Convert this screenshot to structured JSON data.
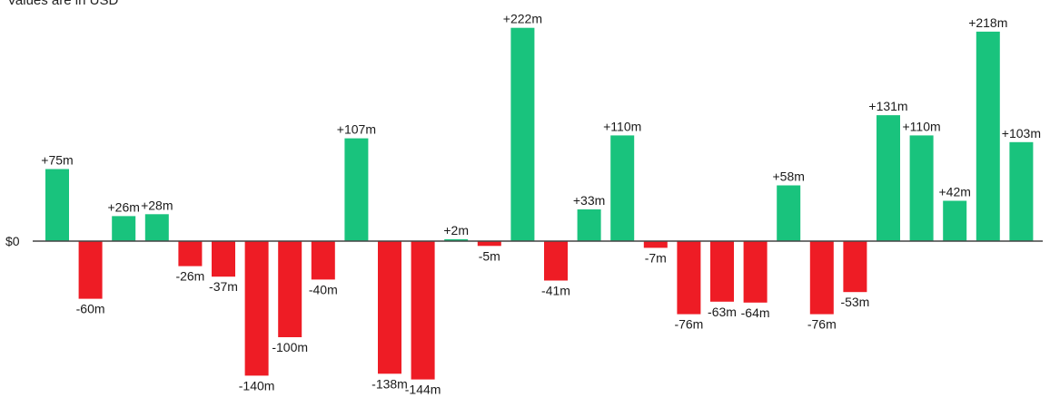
{
  "chart_data": {
    "type": "bar",
    "subtitle": "Values are in USD",
    "zero_label": "$0",
    "values": [
      75,
      -60,
      26,
      28,
      -26,
      -37,
      -140,
      -100,
      -40,
      107,
      -138,
      -144,
      2,
      -5,
      222,
      -41,
      33,
      110,
      -7,
      -76,
      -63,
      -64,
      58,
      -76,
      -53,
      131,
      110,
      42,
      218,
      103
    ],
    "labels": [
      "+75m",
      "-60m",
      "+26m",
      "+28m",
      "-26m",
      "-37m",
      "-140m",
      "-100m",
      "-40m",
      "+107m",
      "-138m",
      "-144m",
      "+2m",
      "-5m",
      "+222m",
      "-41m",
      "+33m",
      "+110m",
      "-7m",
      "-76m",
      "-63m",
      "-64m",
      "+58m",
      "-76m",
      "-53m",
      "+131m",
      "+110m",
      "+42m",
      "+218m",
      "+103m"
    ],
    "colors": {
      "positive": "#19c37d",
      "negative": "#ee1c25",
      "baseline": "#444444",
      "text": "#1a1a1a"
    },
    "grid": false,
    "legend": "none"
  }
}
